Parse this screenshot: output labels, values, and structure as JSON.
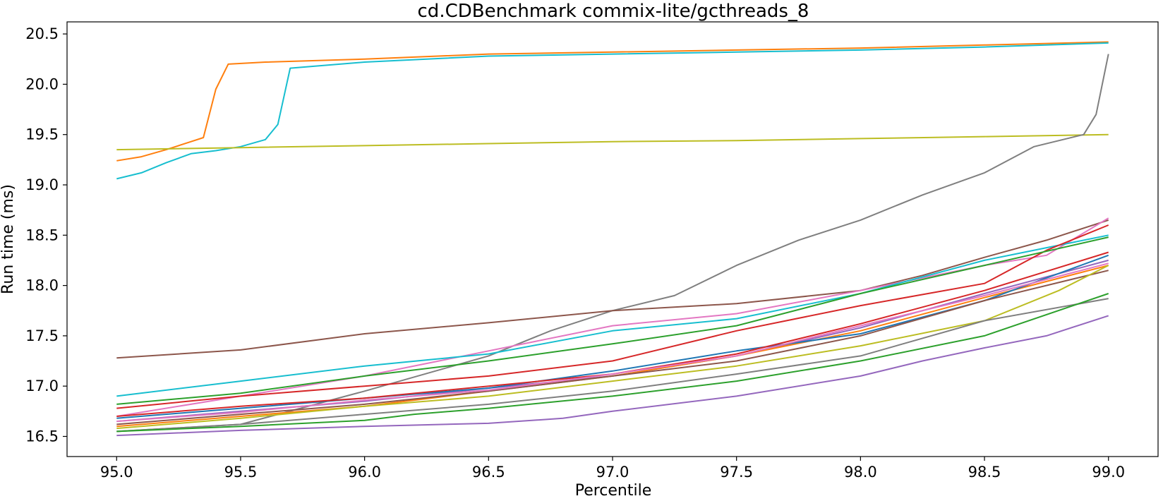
{
  "chart_data": {
    "type": "line",
    "title": "cd.CDBenchmark commix-lite/gcthreads_8",
    "xlabel": "Percentile",
    "ylabel": "Run time (ms)",
    "xlim": [
      94.8,
      99.2
    ],
    "ylim": [
      16.3,
      20.62
    ],
    "xticks": [
      95.0,
      95.5,
      96.0,
      96.5,
      97.0,
      97.5,
      98.0,
      98.5,
      99.0
    ],
    "yticks": [
      16.5,
      17.0,
      17.5,
      18.0,
      18.5,
      19.0,
      19.5,
      20.0,
      20.5
    ],
    "grid": false,
    "legend": "none",
    "series": [
      {
        "color": "#ff7f0e",
        "points": [
          [
            95.0,
            19.24
          ],
          [
            95.1,
            19.28
          ],
          [
            95.2,
            19.35
          ],
          [
            95.3,
            19.43
          ],
          [
            95.35,
            19.47
          ],
          [
            95.4,
            19.95
          ],
          [
            95.45,
            20.2
          ],
          [
            95.6,
            20.22
          ],
          [
            96.0,
            20.25
          ],
          [
            96.5,
            20.3
          ],
          [
            97.0,
            20.32
          ],
          [
            97.5,
            20.34
          ],
          [
            98.0,
            20.36
          ],
          [
            98.5,
            20.39
          ],
          [
            99.0,
            20.42
          ]
        ]
      },
      {
        "color": "#17becf",
        "points": [
          [
            95.0,
            19.06
          ],
          [
            95.1,
            19.12
          ],
          [
            95.2,
            19.22
          ],
          [
            95.3,
            19.31
          ],
          [
            95.4,
            19.34
          ],
          [
            95.5,
            19.38
          ],
          [
            95.6,
            19.45
          ],
          [
            95.65,
            19.6
          ],
          [
            95.7,
            20.16
          ],
          [
            96.0,
            20.22
          ],
          [
            96.5,
            20.28
          ],
          [
            97.0,
            20.3
          ],
          [
            97.5,
            20.32
          ],
          [
            98.0,
            20.34
          ],
          [
            98.5,
            20.37
          ],
          [
            99.0,
            20.41
          ]
        ]
      },
      {
        "color": "#bcbd22",
        "points": [
          [
            95.0,
            19.35
          ],
          [
            95.5,
            19.37
          ],
          [
            96.0,
            19.39
          ],
          [
            96.5,
            19.41
          ],
          [
            97.0,
            19.43
          ],
          [
            97.5,
            19.44
          ],
          [
            98.0,
            19.46
          ],
          [
            98.5,
            19.48
          ],
          [
            99.0,
            19.5
          ]
        ]
      },
      {
        "color": "#7f7f7f",
        "points": [
          [
            95.0,
            16.55
          ],
          [
            95.5,
            16.62
          ],
          [
            96.0,
            16.95
          ],
          [
            96.5,
            17.3
          ],
          [
            96.75,
            17.55
          ],
          [
            97.0,
            17.75
          ],
          [
            97.25,
            17.9
          ],
          [
            97.5,
            18.2
          ],
          [
            97.75,
            18.45
          ],
          [
            98.0,
            18.65
          ],
          [
            98.25,
            18.9
          ],
          [
            98.5,
            19.12
          ],
          [
            98.7,
            19.38
          ],
          [
            98.9,
            19.5
          ],
          [
            98.95,
            19.7
          ],
          [
            99.0,
            20.3
          ]
        ]
      },
      {
        "color": "#8c564b",
        "points": [
          [
            95.0,
            17.28
          ],
          [
            95.5,
            17.36
          ],
          [
            96.0,
            17.52
          ],
          [
            96.5,
            17.63
          ],
          [
            97.0,
            17.75
          ],
          [
            97.5,
            17.82
          ],
          [
            98.0,
            17.95
          ],
          [
            98.25,
            18.1
          ],
          [
            98.5,
            18.28
          ],
          [
            98.75,
            18.45
          ],
          [
            99.0,
            18.65
          ]
        ]
      },
      {
        "color": "#e377c2",
        "points": [
          [
            95.0,
            16.7
          ],
          [
            95.5,
            16.9
          ],
          [
            96.0,
            17.1
          ],
          [
            96.5,
            17.35
          ],
          [
            97.0,
            17.6
          ],
          [
            97.5,
            17.72
          ],
          [
            98.0,
            17.95
          ],
          [
            98.5,
            18.2
          ],
          [
            98.75,
            18.3
          ],
          [
            99.0,
            18.67
          ]
        ]
      },
      {
        "color": "#17becf",
        "points": [
          [
            95.0,
            16.9
          ],
          [
            95.5,
            17.05
          ],
          [
            96.0,
            17.2
          ],
          [
            96.5,
            17.32
          ],
          [
            97.0,
            17.55
          ],
          [
            97.5,
            17.67
          ],
          [
            98.0,
            17.92
          ],
          [
            98.5,
            18.25
          ],
          [
            99.0,
            18.5
          ]
        ]
      },
      {
        "color": "#d62728",
        "points": [
          [
            95.0,
            16.78
          ],
          [
            95.5,
            16.9
          ],
          [
            96.0,
            17.0
          ],
          [
            96.5,
            17.1
          ],
          [
            97.0,
            17.25
          ],
          [
            97.5,
            17.55
          ],
          [
            98.0,
            17.8
          ],
          [
            98.5,
            18.02
          ],
          [
            98.75,
            18.35
          ],
          [
            99.0,
            18.6
          ]
        ]
      },
      {
        "color": "#2ca02c",
        "points": [
          [
            95.0,
            16.82
          ],
          [
            95.5,
            16.93
          ],
          [
            96.0,
            17.1
          ],
          [
            96.5,
            17.25
          ],
          [
            97.0,
            17.42
          ],
          [
            97.5,
            17.6
          ],
          [
            98.0,
            17.92
          ],
          [
            98.5,
            18.2
          ],
          [
            99.0,
            18.48
          ]
        ]
      },
      {
        "color": "#9467bd",
        "points": [
          [
            95.0,
            16.65
          ],
          [
            95.5,
            16.75
          ],
          [
            96.0,
            16.85
          ],
          [
            96.5,
            16.98
          ],
          [
            97.0,
            17.1
          ],
          [
            97.5,
            17.3
          ],
          [
            98.0,
            17.58
          ],
          [
            98.5,
            17.92
          ],
          [
            99.0,
            18.25
          ]
        ]
      },
      {
        "color": "#ff7f0e",
        "points": [
          [
            95.0,
            16.6
          ],
          [
            95.5,
            16.7
          ],
          [
            96.0,
            16.8
          ],
          [
            96.5,
            16.95
          ],
          [
            97.0,
            17.1
          ],
          [
            97.5,
            17.3
          ],
          [
            98.0,
            17.55
          ],
          [
            98.5,
            17.88
          ],
          [
            99.0,
            18.2
          ]
        ]
      },
      {
        "color": "#1f77b4",
        "points": [
          [
            95.0,
            16.68
          ],
          [
            95.5,
            16.78
          ],
          [
            96.0,
            16.88
          ],
          [
            96.5,
            16.98
          ],
          [
            97.0,
            17.15
          ],
          [
            97.5,
            17.35
          ],
          [
            98.0,
            17.52
          ],
          [
            98.5,
            17.85
          ],
          [
            99.0,
            18.3
          ]
        ]
      },
      {
        "color": "#d62728",
        "points": [
          [
            95.0,
            16.7
          ],
          [
            95.5,
            16.8
          ],
          [
            96.0,
            16.88
          ],
          [
            96.5,
            17.0
          ],
          [
            97.0,
            17.12
          ],
          [
            97.5,
            17.32
          ],
          [
            98.0,
            17.62
          ],
          [
            98.5,
            17.95
          ],
          [
            99.0,
            18.33
          ]
        ]
      },
      {
        "color": "#8c564b",
        "points": [
          [
            95.0,
            16.62
          ],
          [
            95.5,
            16.72
          ],
          [
            96.0,
            16.82
          ],
          [
            96.5,
            16.95
          ],
          [
            97.0,
            17.1
          ],
          [
            97.5,
            17.25
          ],
          [
            98.0,
            17.5
          ],
          [
            98.5,
            17.85
          ],
          [
            99.0,
            18.15
          ]
        ]
      },
      {
        "color": "#e377c2",
        "points": [
          [
            95.0,
            16.65
          ],
          [
            95.5,
            16.74
          ],
          [
            96.0,
            16.86
          ],
          [
            96.5,
            16.96
          ],
          [
            97.0,
            17.12
          ],
          [
            97.5,
            17.3
          ],
          [
            98.0,
            17.6
          ],
          [
            98.5,
            17.9
          ],
          [
            99.0,
            18.22
          ]
        ]
      },
      {
        "color": "#bcbd22",
        "points": [
          [
            95.0,
            16.58
          ],
          [
            95.5,
            16.68
          ],
          [
            96.0,
            16.8
          ],
          [
            96.5,
            16.9
          ],
          [
            97.0,
            17.05
          ],
          [
            97.5,
            17.2
          ],
          [
            98.0,
            17.4
          ],
          [
            98.5,
            17.65
          ],
          [
            98.8,
            17.95
          ],
          [
            99.0,
            18.2
          ]
        ]
      },
      {
        "color": "#7f7f7f",
        "points": [
          [
            95.0,
            16.55
          ],
          [
            95.5,
            16.62
          ],
          [
            96.0,
            16.72
          ],
          [
            96.5,
            16.82
          ],
          [
            97.0,
            16.95
          ],
          [
            97.5,
            17.12
          ],
          [
            98.0,
            17.3
          ],
          [
            98.5,
            17.65
          ],
          [
            99.0,
            17.87
          ]
        ]
      },
      {
        "color": "#2ca02c",
        "points": [
          [
            95.0,
            16.55
          ],
          [
            95.5,
            16.6
          ],
          [
            96.0,
            16.66
          ],
          [
            96.2,
            16.72
          ],
          [
            96.5,
            16.78
          ],
          [
            97.0,
            16.9
          ],
          [
            97.5,
            17.05
          ],
          [
            98.0,
            17.25
          ],
          [
            98.5,
            17.5
          ],
          [
            99.0,
            17.92
          ]
        ]
      },
      {
        "color": "#9467bd",
        "points": [
          [
            95.0,
            16.51
          ],
          [
            95.5,
            16.56
          ],
          [
            96.0,
            16.6
          ],
          [
            96.5,
            16.63
          ],
          [
            96.8,
            16.68
          ],
          [
            97.0,
            16.75
          ],
          [
            97.5,
            16.9
          ],
          [
            98.0,
            17.1
          ],
          [
            98.25,
            17.25
          ],
          [
            98.5,
            17.38
          ],
          [
            98.75,
            17.5
          ],
          [
            99.0,
            17.7
          ]
        ]
      }
    ]
  }
}
